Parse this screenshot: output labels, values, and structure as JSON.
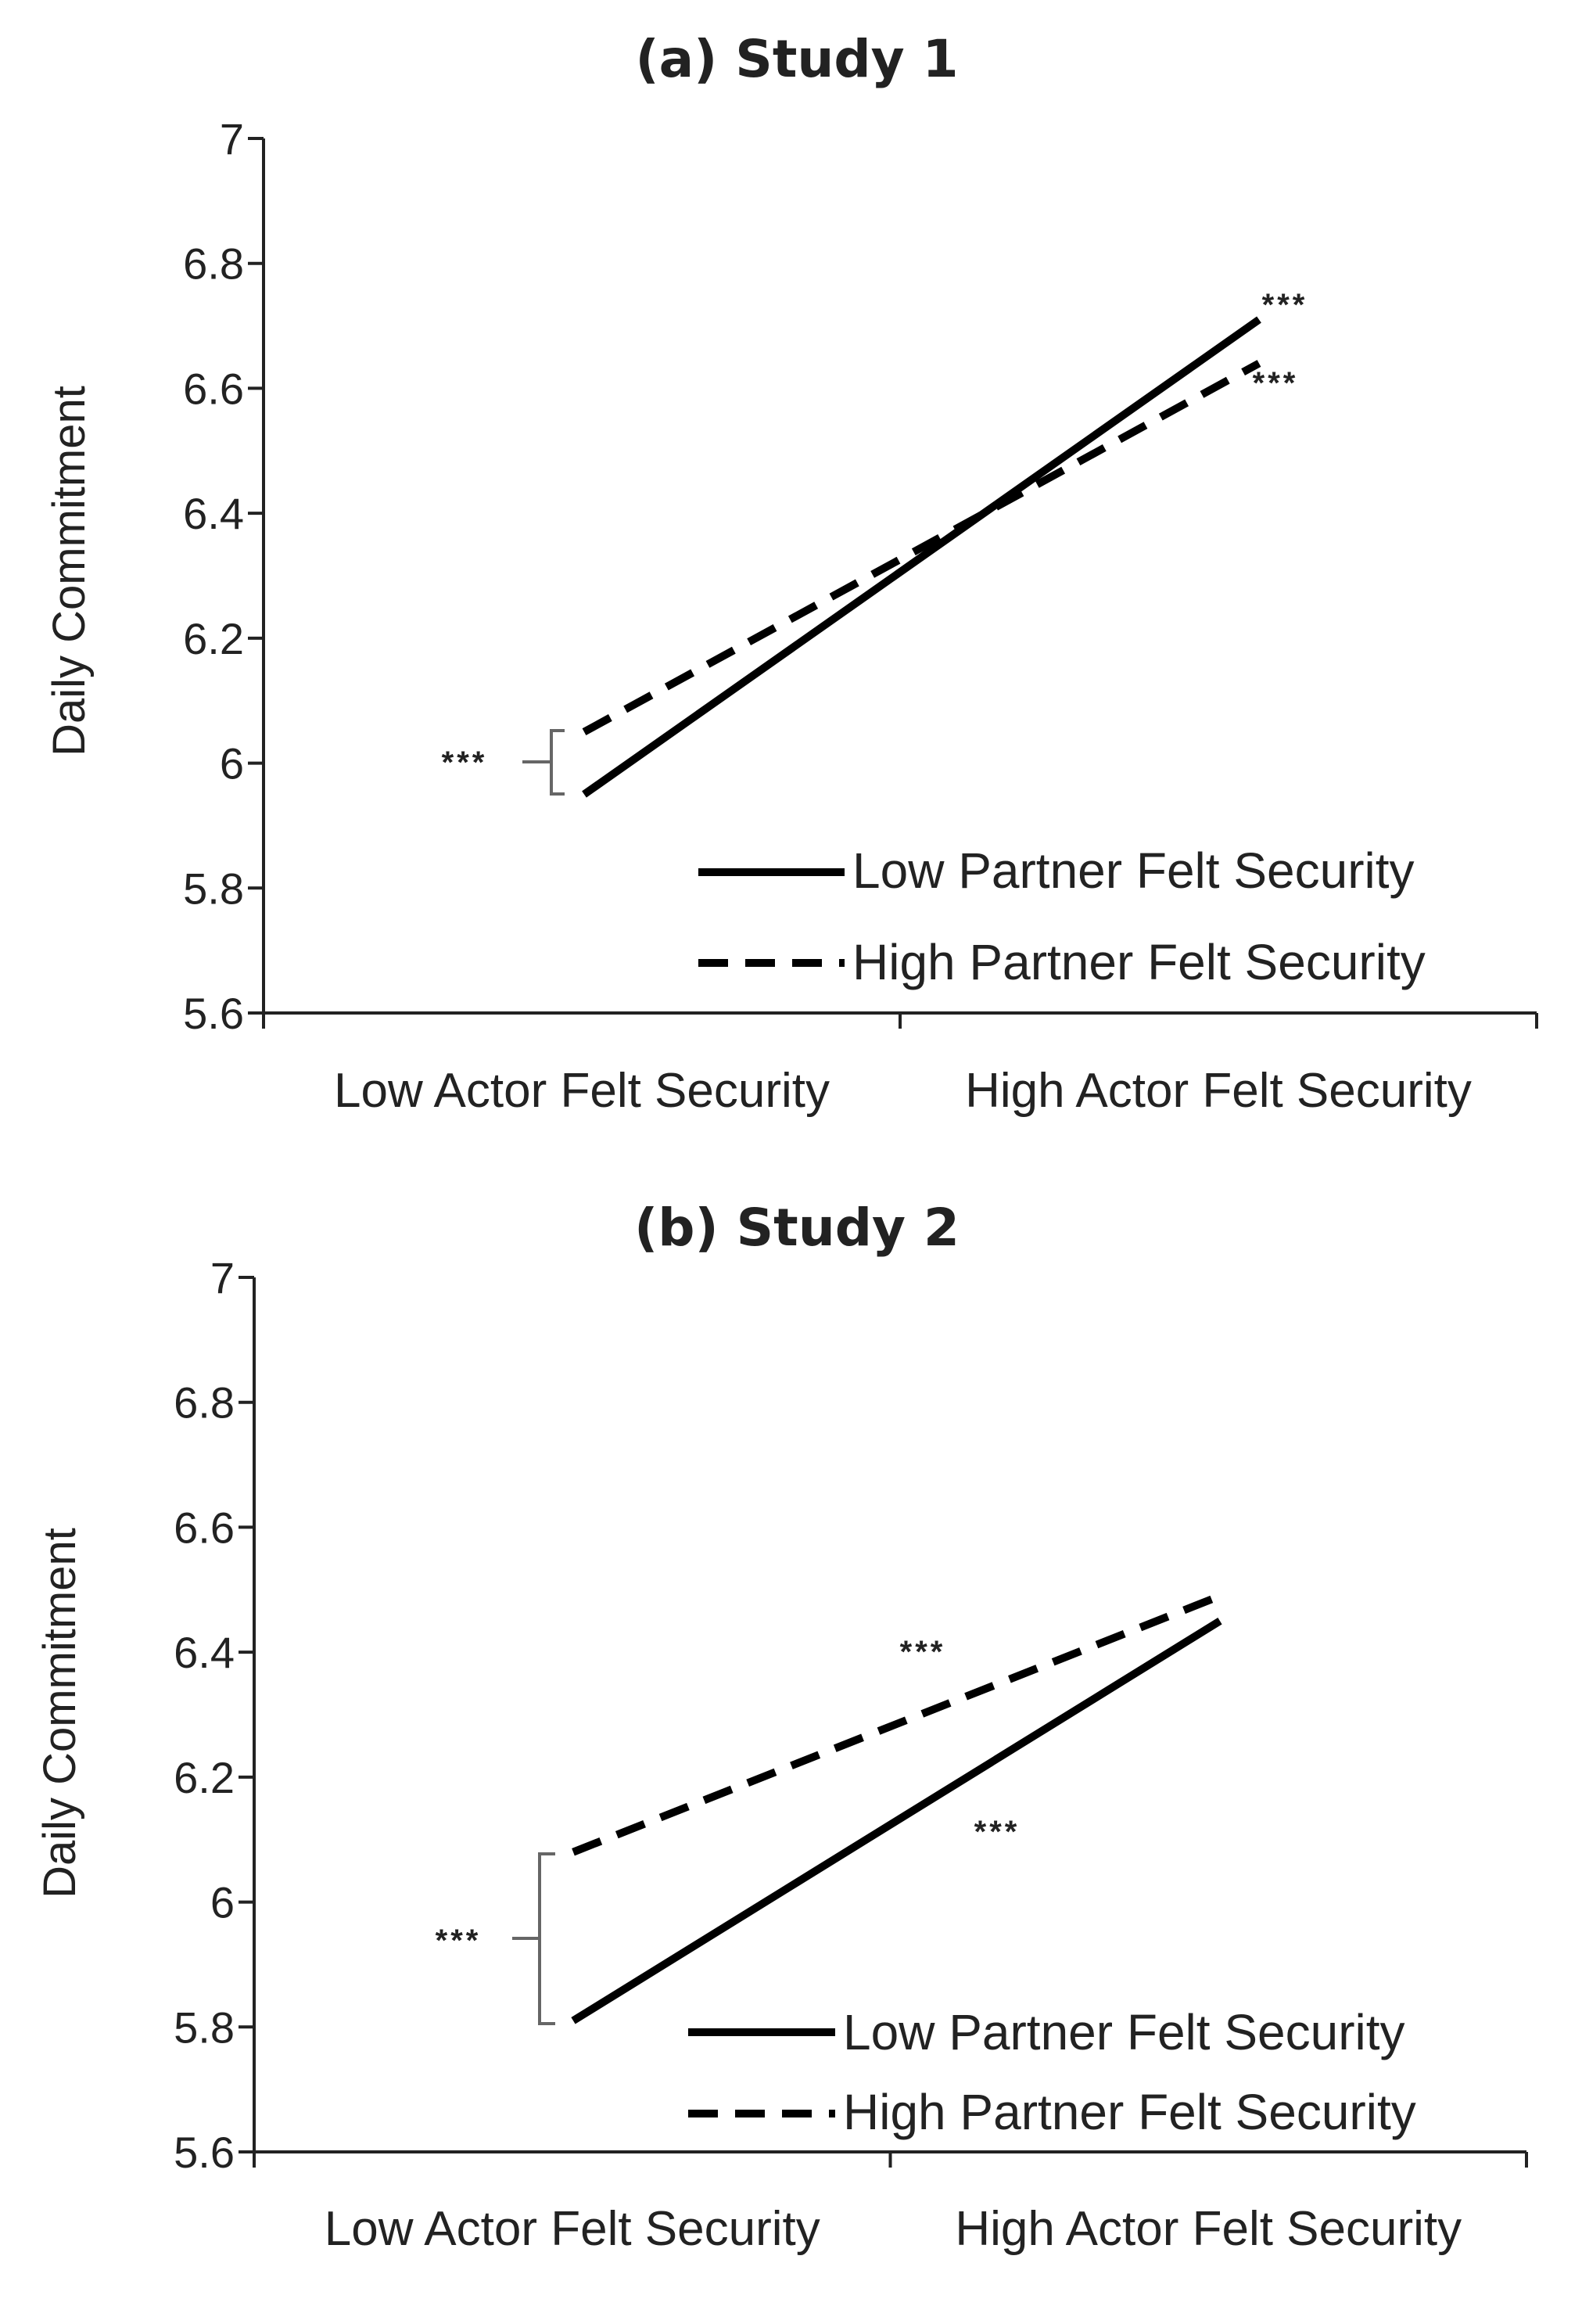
{
  "chart_data": [
    {
      "type": "line",
      "title": "(a) Study 1",
      "xlabel": "",
      "ylabel": "Daily Commitment",
      "categories": [
        "Low Actor Felt Security",
        "High Actor Felt Security"
      ],
      "ylim": [
        5.6,
        7
      ],
      "yticks": [
        "5.6",
        "5.8",
        "6",
        "6.2",
        "6.4",
        "6.6",
        "6.8",
        "7"
      ],
      "series": [
        {
          "name": "Low Partner Felt Security",
          "style": "solid",
          "values": [
            5.95,
            6.71
          ]
        },
        {
          "name": "High Partner Felt Security",
          "style": "dashed",
          "values": [
            6.05,
            6.64
          ]
        }
      ],
      "legend_position": "bottom-right",
      "annotations": [
        "***",
        "***",
        "***"
      ]
    },
    {
      "type": "line",
      "title": "(b) Study 2",
      "xlabel": "",
      "ylabel": "Daily Commitment",
      "categories": [
        "Low Actor Felt Security",
        "High Actor Felt Security"
      ],
      "ylim": [
        5.6,
        7
      ],
      "yticks": [
        "5.6",
        "5.8",
        "6",
        "6.2",
        "6.4",
        "6.6",
        "6.8",
        "7"
      ],
      "series": [
        {
          "name": "Low Partner Felt Security",
          "style": "solid",
          "values": [
            5.81,
            6.45
          ]
        },
        {
          "name": "High Partner Felt Security",
          "style": "dashed",
          "values": [
            6.08,
            6.49
          ]
        }
      ],
      "legend_position": "bottom-right",
      "annotations": [
        "***",
        "***",
        "***"
      ]
    }
  ],
  "colors": {
    "line": "#000000",
    "axis": "#222222",
    "text": "#222222",
    "bracket": "#666666"
  }
}
